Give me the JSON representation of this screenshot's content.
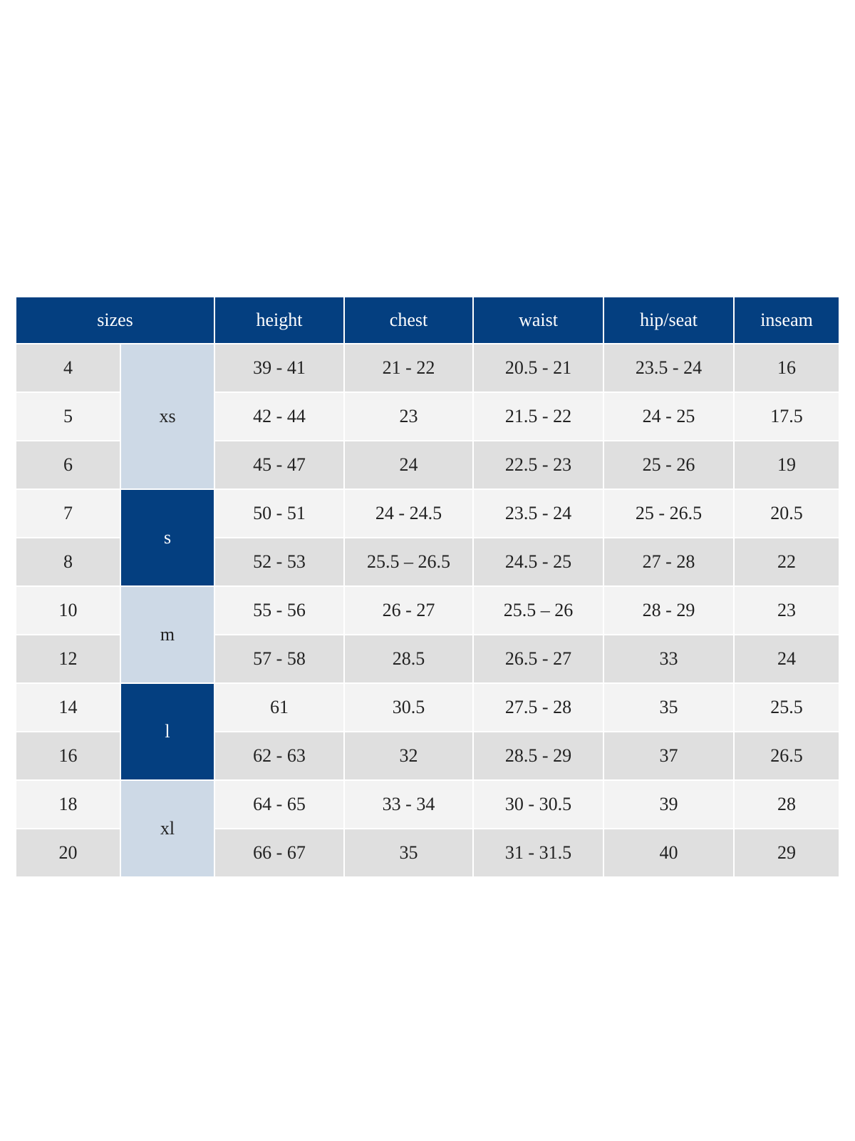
{
  "table": {
    "header": [
      "sizes",
      "height",
      "chest",
      "waist",
      "hip/seat",
      "inseam"
    ],
    "groups": [
      {
        "label": "xs",
        "rows": [
          [
            "4",
            "39 - 41",
            "21 - 22",
            "20.5 - 21",
            "23.5 - 24",
            "16"
          ],
          [
            "5",
            "42 - 44",
            "23",
            "21.5 - 22",
            "24 - 25",
            "17.5"
          ],
          [
            "6",
            "45 - 47",
            "24",
            "22.5 - 23",
            "25 - 26",
            "19"
          ]
        ]
      },
      {
        "label": "s",
        "rows": [
          [
            "7",
            "50 - 51",
            "24 - 24.5",
            "23.5 - 24",
            "25 - 26.5",
            "20.5"
          ],
          [
            "8",
            "52 - 53",
            "25.5 – 26.5",
            "24.5 - 25",
            "27 - 28",
            "22"
          ]
        ]
      },
      {
        "label": "m",
        "rows": [
          [
            "10",
            "55 - 56",
            "26 - 27",
            "25.5 – 26",
            "28 - 29",
            "23"
          ],
          [
            "12",
            "57 - 58",
            "28.5",
            "26.5 - 27",
            "33",
            "24"
          ]
        ]
      },
      {
        "label": "l",
        "rows": [
          [
            "14",
            "61",
            "30.5",
            "27.5 - 28",
            "35",
            "25.5"
          ],
          [
            "16",
            "62 - 63",
            "32",
            "28.5 - 29",
            "37",
            "26.5"
          ]
        ]
      },
      {
        "label": "xl",
        "rows": [
          [
            "18",
            "64 - 65",
            "33 - 34",
            "30 - 30.5",
            "39",
            "28"
          ],
          [
            "20",
            "66 - 67",
            "35",
            "31 - 31.5",
            "40",
            "29"
          ]
        ]
      }
    ]
  }
}
